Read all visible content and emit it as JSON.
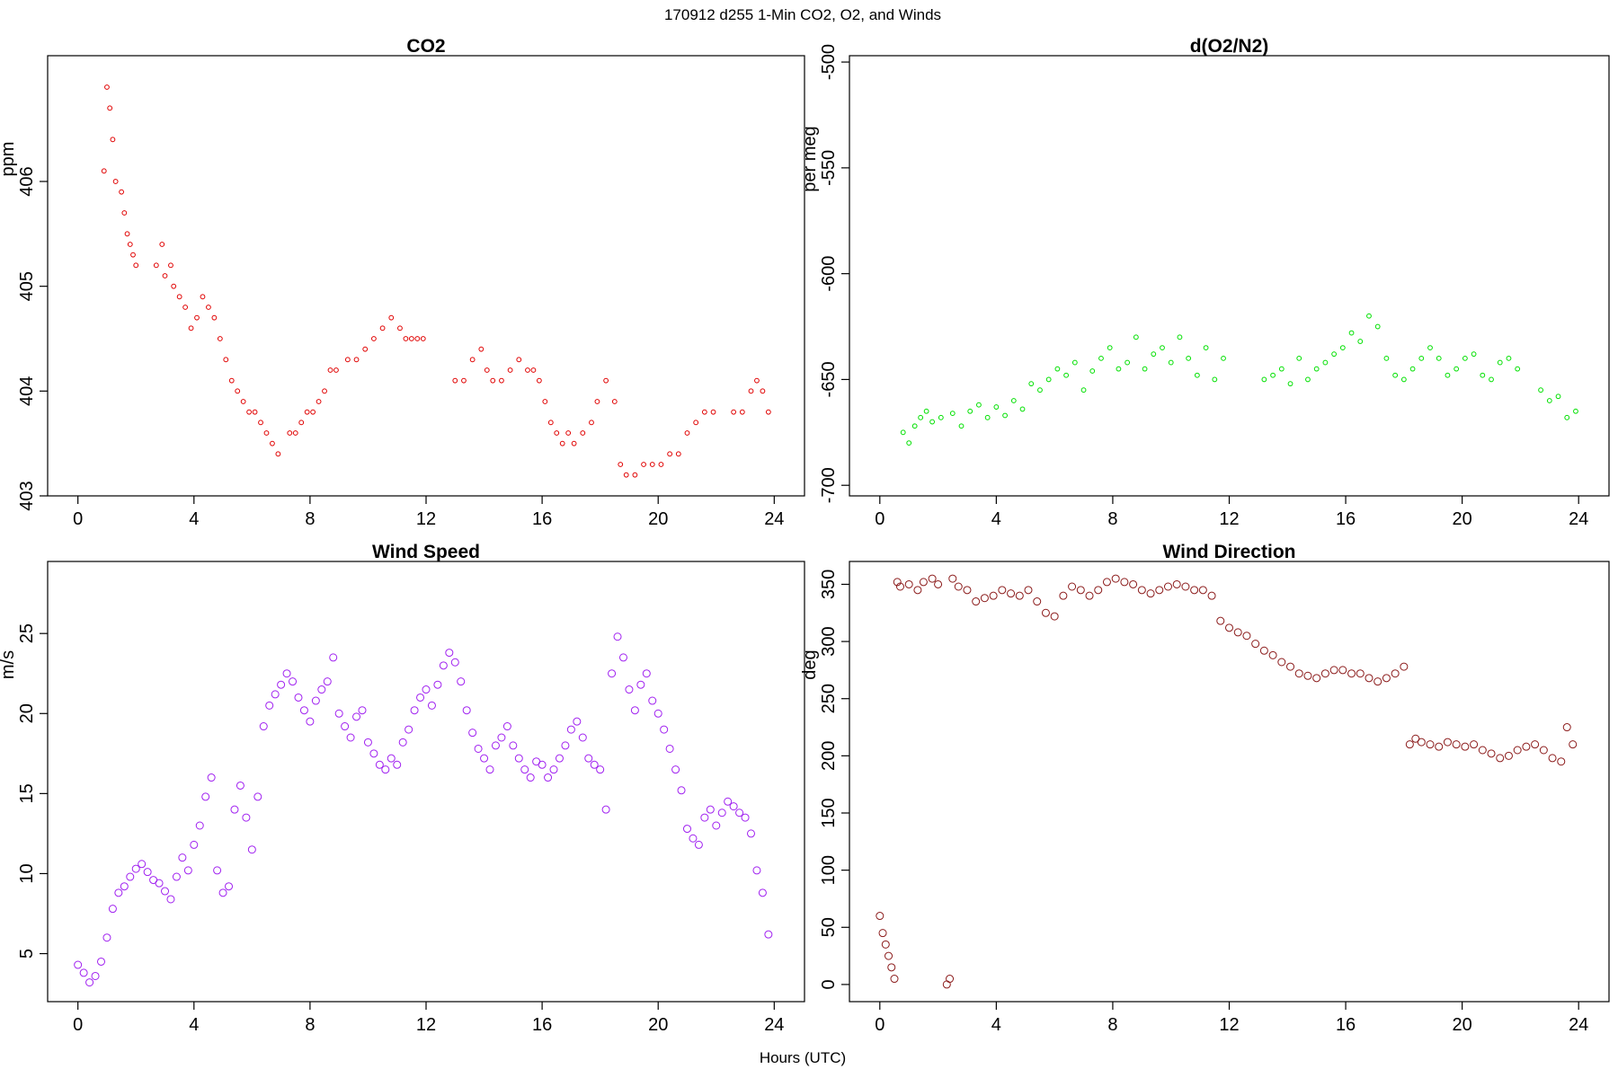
{
  "page": {
    "title": "170912   d255   1-Min CO2, O2, and Winds",
    "xlabel": "Hours (UTC)"
  },
  "chart_data": [
    {
      "id": "co2",
      "type": "scatter",
      "title": "CO2",
      "xlabel": "",
      "ylabel": "ppm",
      "xlim": [
        0,
        24
      ],
      "ylim": [
        403,
        407.2
      ],
      "xticks": [
        0,
        4,
        8,
        12,
        16,
        20,
        24
      ],
      "yticks": [
        403,
        404,
        405,
        406
      ],
      "color": "#e00000",
      "grid": false,
      "series": [
        {
          "x": [
            0.9,
            1.0,
            1.1,
            1.2,
            1.3,
            1.5,
            1.6,
            1.7,
            1.8,
            1.9,
            2.0,
            2.7,
            2.9,
            3.0,
            3.2,
            3.3,
            3.5,
            3.7,
            3.9,
            4.1,
            4.3,
            4.5,
            4.7,
            4.9,
            5.1,
            5.3,
            5.5,
            5.7,
            5.9,
            6.1,
            6.3,
            6.5,
            6.7,
            6.9,
            7.3,
            7.5,
            7.7,
            7.9,
            8.1,
            8.3,
            8.5,
            8.7,
            8.9,
            9.3,
            9.6,
            9.9,
            10.2,
            10.5,
            10.8,
            11.1,
            11.3,
            11.5,
            11.7,
            11.9,
            13.0,
            13.3,
            13.6,
            13.9,
            14.1,
            14.3,
            14.6,
            14.9,
            15.2,
            15.5,
            15.7,
            15.9,
            16.1,
            16.3,
            16.5,
            16.7,
            16.9,
            17.1,
            17.4,
            17.7,
            17.9,
            18.2,
            18.5,
            18.7,
            18.9,
            19.2,
            19.5,
            19.8,
            20.1,
            20.4,
            20.7,
            21.0,
            21.3,
            21.6,
            21.9,
            22.6,
            22.9,
            23.2,
            23.4,
            23.6,
            23.8
          ],
          "y": [
            406.1,
            406.9,
            406.7,
            406.4,
            406.0,
            405.9,
            405.7,
            405.5,
            405.4,
            405.3,
            405.2,
            405.2,
            405.4,
            405.1,
            405.2,
            405.0,
            404.9,
            404.8,
            404.6,
            404.7,
            404.9,
            404.8,
            404.7,
            404.5,
            404.3,
            404.1,
            404.0,
            403.9,
            403.8,
            403.8,
            403.7,
            403.6,
            403.5,
            403.4,
            403.6,
            403.6,
            403.7,
            403.8,
            403.8,
            403.9,
            404.0,
            404.2,
            404.2,
            404.3,
            404.3,
            404.4,
            404.5,
            404.6,
            404.7,
            404.6,
            404.5,
            404.5,
            404.5,
            404.5,
            404.1,
            404.1,
            404.3,
            404.4,
            404.2,
            404.1,
            404.1,
            404.2,
            404.3,
            404.2,
            404.2,
            404.1,
            403.9,
            403.7,
            403.6,
            403.5,
            403.6,
            403.5,
            403.6,
            403.7,
            403.9,
            404.1,
            403.9,
            403.3,
            403.2,
            403.2,
            403.3,
            403.3,
            403.3,
            403.4,
            403.4,
            403.6,
            403.7,
            403.8,
            403.8,
            403.8,
            403.8,
            404.0,
            404.1,
            404.0,
            403.8
          ]
        }
      ]
    },
    {
      "id": "o2",
      "type": "scatter",
      "title": "d(O2/N2)",
      "xlabel": "",
      "ylabel": "per meg",
      "xlim": [
        0,
        24
      ],
      "ylim": [
        -705,
        -497
      ],
      "xticks": [
        0,
        4,
        8,
        12,
        16,
        20,
        24
      ],
      "yticks": [
        -700,
        -650,
        -600,
        -550,
        -500
      ],
      "color": "#00e000",
      "grid": false,
      "series": [
        {
          "x": [
            0.8,
            1.0,
            1.2,
            1.4,
            1.6,
            1.8,
            2.1,
            2.5,
            2.8,
            3.1,
            3.4,
            3.7,
            4.0,
            4.3,
            4.6,
            4.9,
            5.2,
            5.5,
            5.8,
            6.1,
            6.4,
            6.7,
            7.0,
            7.3,
            7.6,
            7.9,
            8.2,
            8.5,
            8.8,
            9.1,
            9.4,
            9.7,
            10.0,
            10.3,
            10.6,
            10.9,
            11.2,
            11.5,
            11.8,
            13.2,
            13.5,
            13.8,
            14.1,
            14.4,
            14.7,
            15.0,
            15.3,
            15.6,
            15.9,
            16.2,
            16.5,
            16.8,
            17.1,
            17.4,
            17.7,
            18.0,
            18.3,
            18.6,
            18.9,
            19.2,
            19.5,
            19.8,
            20.1,
            20.4,
            20.7,
            21.0,
            21.3,
            21.6,
            21.9,
            22.7,
            23.0,
            23.3,
            23.6,
            23.9
          ],
          "y": [
            -675,
            -680,
            -672,
            -668,
            -665,
            -670,
            -668,
            -666,
            -672,
            -665,
            -662,
            -668,
            -663,
            -667,
            -660,
            -664,
            -652,
            -655,
            -650,
            -645,
            -648,
            -642,
            -655,
            -646,
            -640,
            -635,
            -645,
            -642,
            -630,
            -645,
            -638,
            -635,
            -642,
            -630,
            -640,
            -648,
            -635,
            -650,
            -640,
            -650,
            -648,
            -645,
            -652,
            -640,
            -650,
            -645,
            -642,
            -638,
            -635,
            -628,
            -632,
            -620,
            -625,
            -640,
            -648,
            -650,
            -645,
            -640,
            -635,
            -640,
            -648,
            -645,
            -640,
            -638,
            -648,
            -650,
            -642,
            -640,
            -645,
            -655,
            -660,
            -658,
            -668,
            -665
          ]
        }
      ]
    },
    {
      "id": "wind-speed",
      "type": "scatter",
      "title": "Wind Speed",
      "xlabel": "",
      "ylabel": "m/s",
      "xlim": [
        0,
        24
      ],
      "ylim": [
        2,
        29.5
      ],
      "xticks": [
        0,
        4,
        8,
        12,
        16,
        20,
        24
      ],
      "yticks": [
        5,
        10,
        15,
        20,
        25
      ],
      "color": "#a020f0",
      "grid": false,
      "series": [
        {
          "x": [
            0.0,
            0.2,
            0.4,
            0.6,
            0.8,
            1.0,
            1.2,
            1.4,
            1.6,
            1.8,
            2.0,
            2.2,
            2.4,
            2.6,
            2.8,
            3.0,
            3.2,
            3.4,
            3.6,
            3.8,
            4.0,
            4.2,
            4.4,
            4.6,
            4.8,
            5.0,
            5.2,
            5.4,
            5.6,
            5.8,
            6.0,
            6.2,
            6.4,
            6.6,
            6.8,
            7.0,
            7.2,
            7.4,
            7.6,
            7.8,
            8.0,
            8.2,
            8.4,
            8.6,
            8.8,
            9.0,
            9.2,
            9.4,
            9.6,
            9.8,
            10.0,
            10.2,
            10.4,
            10.6,
            10.8,
            11.0,
            11.2,
            11.4,
            11.6,
            11.8,
            12.0,
            12.2,
            12.4,
            12.6,
            12.8,
            13.0,
            13.2,
            13.4,
            13.6,
            13.8,
            14.0,
            14.2,
            14.4,
            14.6,
            14.8,
            15.0,
            15.2,
            15.4,
            15.6,
            15.8,
            16.0,
            16.2,
            16.4,
            16.6,
            16.8,
            17.0,
            17.2,
            17.4,
            17.6,
            17.8,
            18.0,
            18.2,
            18.4,
            18.6,
            18.8,
            19.0,
            19.2,
            19.4,
            19.6,
            19.8,
            20.0,
            20.2,
            20.4,
            20.6,
            20.8,
            21.0,
            21.2,
            21.4,
            21.6,
            21.8,
            22.0,
            22.2,
            22.4,
            22.6,
            22.8,
            23.0,
            23.2,
            23.4,
            23.6,
            23.8
          ],
          "y": [
            4.3,
            3.8,
            3.2,
            3.6,
            4.5,
            6.0,
            7.8,
            8.8,
            9.2,
            9.8,
            10.3,
            10.6,
            10.1,
            9.6,
            9.4,
            8.9,
            8.4,
            9.8,
            11.0,
            10.2,
            11.8,
            13.0,
            14.8,
            16.0,
            10.2,
            8.8,
            9.2,
            14.0,
            15.5,
            13.5,
            11.5,
            14.8,
            19.2,
            20.5,
            21.2,
            21.8,
            22.5,
            22.0,
            21.0,
            20.2,
            19.5,
            20.8,
            21.5,
            22.0,
            23.5,
            20.0,
            19.2,
            18.5,
            19.8,
            20.2,
            18.2,
            17.5,
            16.8,
            16.5,
            17.2,
            16.8,
            18.2,
            19.0,
            20.2,
            21.0,
            21.5,
            20.5,
            21.8,
            23.0,
            23.8,
            23.2,
            22.0,
            20.2,
            18.8,
            17.8,
            17.2,
            16.5,
            18.0,
            18.5,
            19.2,
            18.0,
            17.2,
            16.5,
            16.0,
            17.0,
            16.8,
            16.0,
            16.5,
            17.2,
            18.0,
            19.0,
            19.5,
            18.5,
            17.2,
            16.8,
            16.5,
            14.0,
            22.5,
            24.8,
            23.5,
            21.5,
            20.2,
            21.8,
            22.5,
            20.8,
            20.0,
            19.0,
            17.8,
            16.5,
            15.2,
            12.8,
            12.2,
            11.8,
            13.5,
            14.0,
            13.0,
            13.8,
            14.5,
            14.2,
            13.8,
            13.5,
            12.5,
            10.2,
            8.8,
            6.2
          ]
        }
      ]
    },
    {
      "id": "wind-direction",
      "type": "scatter",
      "title": "Wind Direction",
      "xlabel": "",
      "ylabel": "deg",
      "xlim": [
        0,
        24
      ],
      "ylim": [
        -15,
        370
      ],
      "xticks": [
        0,
        4,
        8,
        12,
        16,
        20,
        24
      ],
      "yticks": [
        0,
        50,
        100,
        150,
        200,
        250,
        300,
        350
      ],
      "color": "#8b1a1a",
      "grid": false,
      "series": [
        {
          "x": [
            0.0,
            0.1,
            0.2,
            0.3,
            0.4,
            0.5,
            0.6,
            0.7,
            1.0,
            1.3,
            1.5,
            1.8,
            2.0,
            2.3,
            2.4,
            2.5,
            2.7,
            3.0,
            3.3,
            3.6,
            3.9,
            4.2,
            4.5,
            4.8,
            5.1,
            5.4,
            5.7,
            6.0,
            6.3,
            6.6,
            6.9,
            7.2,
            7.5,
            7.8,
            8.1,
            8.4,
            8.7,
            9.0,
            9.3,
            9.6,
            9.9,
            10.2,
            10.5,
            10.8,
            11.1,
            11.4,
            11.7,
            12.0,
            12.3,
            12.6,
            12.9,
            13.2,
            13.5,
            13.8,
            14.1,
            14.4,
            14.7,
            15.0,
            15.3,
            15.6,
            15.9,
            16.2,
            16.5,
            16.8,
            17.1,
            17.4,
            17.7,
            18.0,
            18.2,
            18.4,
            18.6,
            18.9,
            19.2,
            19.5,
            19.8,
            20.1,
            20.4,
            20.7,
            21.0,
            21.3,
            21.6,
            21.9,
            22.2,
            22.5,
            22.8,
            23.1,
            23.4,
            23.6,
            23.8
          ],
          "y": [
            60,
            45,
            35,
            25,
            15,
            5,
            352,
            348,
            350,
            345,
            352,
            355,
            350,
            0,
            5,
            355,
            348,
            345,
            335,
            338,
            340,
            345,
            342,
            340,
            345,
            335,
            325,
            322,
            340,
            348,
            345,
            340,
            345,
            352,
            355,
            352,
            350,
            345,
            342,
            345,
            348,
            350,
            348,
            345,
            345,
            340,
            318,
            312,
            308,
            305,
            298,
            292,
            288,
            282,
            278,
            272,
            270,
            268,
            272,
            275,
            275,
            272,
            272,
            268,
            265,
            268,
            272,
            278,
            210,
            215,
            212,
            210,
            208,
            212,
            210,
            208,
            210,
            205,
            202,
            198,
            200,
            205,
            208,
            210,
            205,
            198,
            195,
            225,
            210
          ]
        }
      ]
    }
  ]
}
